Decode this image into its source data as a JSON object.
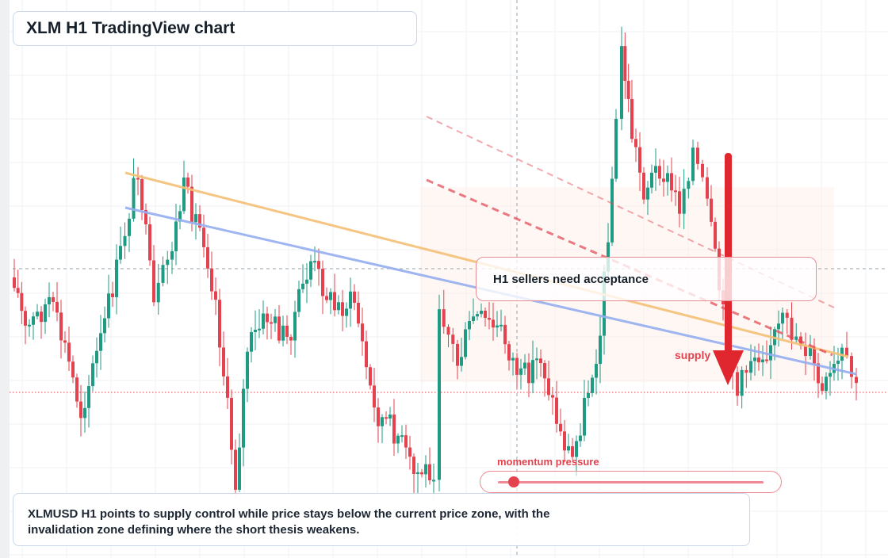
{
  "header": {
    "title": "XLM H1 TradingView chart"
  },
  "annotations": {
    "callout": "H1 sellers need acceptance",
    "supply_label": "supply",
    "momentum_label": "momentum pressure"
  },
  "footer": {
    "description": "XLMUSD H1 points to supply control while price stays below the current price zone, with the invalidation zone defining where the short thesis weakens."
  },
  "colors": {
    "bull": "#1f9a83",
    "bear": "#e3424e",
    "resistance": "#f5c076",
    "trendline": "#94aef0",
    "accent": "#e0262e"
  },
  "indicators": {
    "momentum_pressure": 0.05
  },
  "icons": {
    "supply_arrow": "arrow-down-icon"
  }
}
